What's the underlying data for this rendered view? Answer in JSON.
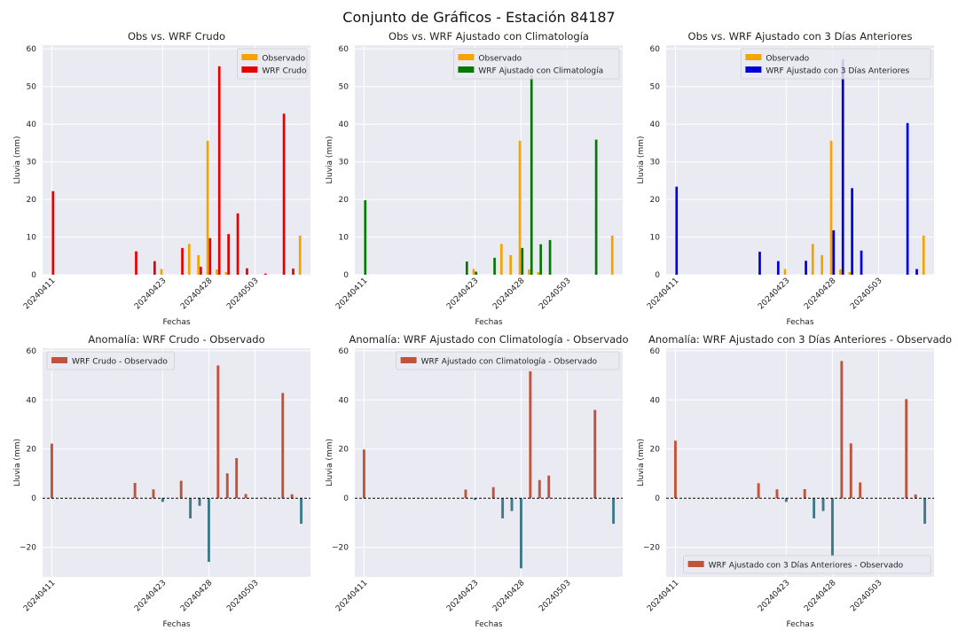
{
  "suptitle": "Conjunto de Gráficos - Estación 84187",
  "colors": {
    "observado": "#f5a300",
    "wrf_crudo": "#e60000",
    "wrf_clim": "#067806",
    "wrf_3d": "#0000d8",
    "anom_pos": "#c0533a",
    "anom_neg": "#3e7a88",
    "panel_bg": "#eaeaf2",
    "grid": "#ffffff",
    "zero_line": "#000000"
  },
  "chart_data": [
    {
      "type": "bar",
      "title": "Obs vs. WRF Crudo",
      "xlabel": "Fechas",
      "ylabel": "Lluvia (mm)",
      "ylim": [
        0,
        61
      ],
      "yticks": [
        0,
        10,
        20,
        30,
        40,
        50,
        60
      ],
      "grid": true,
      "legend": "top-right",
      "x": [
        "20240411",
        "20240420",
        "20240422",
        "20240423",
        "20240425",
        "20240426",
        "20240427",
        "20240428",
        "20240429",
        "20240430",
        "20240501",
        "20240502",
        "20240504",
        "20240506",
        "20240507",
        "20240508"
      ],
      "xticks": [
        "20240411",
        "20240423",
        "20240428",
        "20240503"
      ],
      "series": [
        {
          "name": "Observado",
          "values": [
            0,
            0,
            0,
            1.5,
            0,
            8.2,
            5.2,
            35.6,
            1.4,
            0.7,
            0,
            0,
            0,
            0,
            0,
            10.4
          ]
        },
        {
          "name": "WRF Crudo",
          "values": [
            22.2,
            6.2,
            3.6,
            0,
            7.1,
            0,
            2.1,
            9.7,
            55.4,
            10.8,
            16.3,
            1.7,
            0.3,
            42.8,
            1.6,
            0
          ]
        }
      ]
    },
    {
      "type": "bar",
      "title": "Obs vs. WRF Ajustado con Climatología",
      "xlabel": "Fechas",
      "ylabel": "Lluvia (mm)",
      "ylim": [
        0,
        61
      ],
      "yticks": [
        0,
        10,
        20,
        30,
        40,
        50,
        60
      ],
      "grid": true,
      "legend": "top-right",
      "x": [
        "20240411",
        "20240420",
        "20240422",
        "20240423",
        "20240425",
        "20240426",
        "20240427",
        "20240428",
        "20240429",
        "20240430",
        "20240501",
        "20240502",
        "20240504",
        "20240506",
        "20240507",
        "20240508"
      ],
      "xticks": [
        "20240411",
        "20240423",
        "20240428",
        "20240503"
      ],
      "series": [
        {
          "name": "Observado",
          "values": [
            0,
            0,
            0,
            1.5,
            0,
            8.2,
            5.2,
            35.6,
            1.4,
            0.7,
            0,
            0,
            0,
            0,
            0,
            10.4
          ]
        },
        {
          "name": "WRF Ajustado con Climatología",
          "values": [
            19.8,
            0,
            3.5,
            0.8,
            4.5,
            0,
            0,
            7.1,
            53.0,
            8.1,
            9.2,
            0,
            0,
            35.9,
            0,
            0
          ]
        }
      ]
    },
    {
      "type": "bar",
      "title": "Obs vs. WRF Ajustado con 3 Días Anteriores",
      "xlabel": "Fechas",
      "ylabel": "Lluvia (mm)",
      "ylim": [
        0,
        61
      ],
      "yticks": [
        0,
        10,
        20,
        30,
        40,
        50,
        60
      ],
      "grid": true,
      "legend": "top-right",
      "x": [
        "20240411",
        "20240420",
        "20240422",
        "20240423",
        "20240425",
        "20240426",
        "20240427",
        "20240428",
        "20240429",
        "20240430",
        "20240501",
        "20240502",
        "20240504",
        "20240506",
        "20240507",
        "20240508"
      ],
      "xticks": [
        "20240411",
        "20240423",
        "20240428",
        "20240503"
      ],
      "series": [
        {
          "name": "Observado",
          "values": [
            0,
            0,
            0,
            1.5,
            0,
            8.2,
            5.2,
            35.6,
            1.4,
            0.7,
            0,
            0,
            0,
            0,
            0,
            10.4
          ]
        },
        {
          "name": "WRF Ajustado con 3 Días Anteriores",
          "values": [
            23.4,
            6.1,
            3.6,
            0,
            3.7,
            0,
            0,
            11.8,
            57.2,
            23.0,
            6.4,
            0,
            0,
            40.3,
            1.5,
            0
          ]
        }
      ]
    },
    {
      "type": "bar",
      "title": "Anomalía: WRF Crudo - Observado",
      "xlabel": "Fechas",
      "ylabel": "Lluvia (mm)",
      "ylim": [
        -32,
        61
      ],
      "yticks": [
        -20,
        0,
        20,
        40,
        60
      ],
      "grid": true,
      "legend": "top-left",
      "zero_line": true,
      "x": [
        "20240411",
        "20240420",
        "20240422",
        "20240423",
        "20240425",
        "20240426",
        "20240427",
        "20240428",
        "20240429",
        "20240430",
        "20240501",
        "20240502",
        "20240504",
        "20240506",
        "20240507",
        "20240508"
      ],
      "xticks": [
        "20240411",
        "20240423",
        "20240428",
        "20240503"
      ],
      "series": [
        {
          "name": "WRF Crudo - Observado",
          "values": [
            22.2,
            6.2,
            3.6,
            -1.5,
            7.1,
            -8.2,
            -3.1,
            -25.9,
            54.0,
            10.1,
            16.3,
            1.7,
            0.3,
            42.8,
            1.6,
            -10.4
          ]
        }
      ]
    },
    {
      "type": "bar",
      "title": "Anomalía: WRF Ajustado con Climatología - Observado",
      "xlabel": "Fechas",
      "ylabel": "Lluvia (mm)",
      "ylim": [
        -32,
        61
      ],
      "yticks": [
        -20,
        0,
        20,
        40,
        60
      ],
      "grid": true,
      "legend": "top-right",
      "zero_line": true,
      "x": [
        "20240411",
        "20240420",
        "20240422",
        "20240423",
        "20240425",
        "20240426",
        "20240427",
        "20240428",
        "20240429",
        "20240430",
        "20240501",
        "20240502",
        "20240504",
        "20240506",
        "20240507",
        "20240508"
      ],
      "xticks": [
        "20240411",
        "20240423",
        "20240428",
        "20240503"
      ],
      "series": [
        {
          "name": "WRF Ajustado con Climatología - Observado",
          "values": [
            19.8,
            0,
            3.5,
            -0.7,
            4.5,
            -8.2,
            -5.2,
            -28.5,
            51.6,
            7.4,
            9.2,
            0,
            0,
            35.9,
            0,
            -10.4
          ]
        }
      ]
    },
    {
      "type": "bar",
      "title": "Anomalía: WRF Ajustado con 3 Días Anteriores - Observado",
      "xlabel": "Fechas",
      "ylabel": "Lluvia (mm)",
      "ylim": [
        -32,
        61
      ],
      "yticks": [
        -20,
        0,
        20,
        40,
        60
      ],
      "grid": true,
      "legend": "bottom-right",
      "zero_line": true,
      "x": [
        "20240411",
        "20240420",
        "20240422",
        "20240423",
        "20240425",
        "20240426",
        "20240427",
        "20240428",
        "20240429",
        "20240430",
        "20240501",
        "20240502",
        "20240504",
        "20240506",
        "20240507",
        "20240508"
      ],
      "xticks": [
        "20240411",
        "20240423",
        "20240428",
        "20240503"
      ],
      "series": [
        {
          "name": "WRF Ajustado con 3 Días Anteriores - Observado",
          "values": [
            23.4,
            6.1,
            3.6,
            -1.5,
            3.7,
            -8.2,
            -5.2,
            -23.8,
            55.8,
            22.3,
            6.4,
            0,
            0,
            40.3,
            1.5,
            -10.4
          ]
        }
      ]
    }
  ]
}
